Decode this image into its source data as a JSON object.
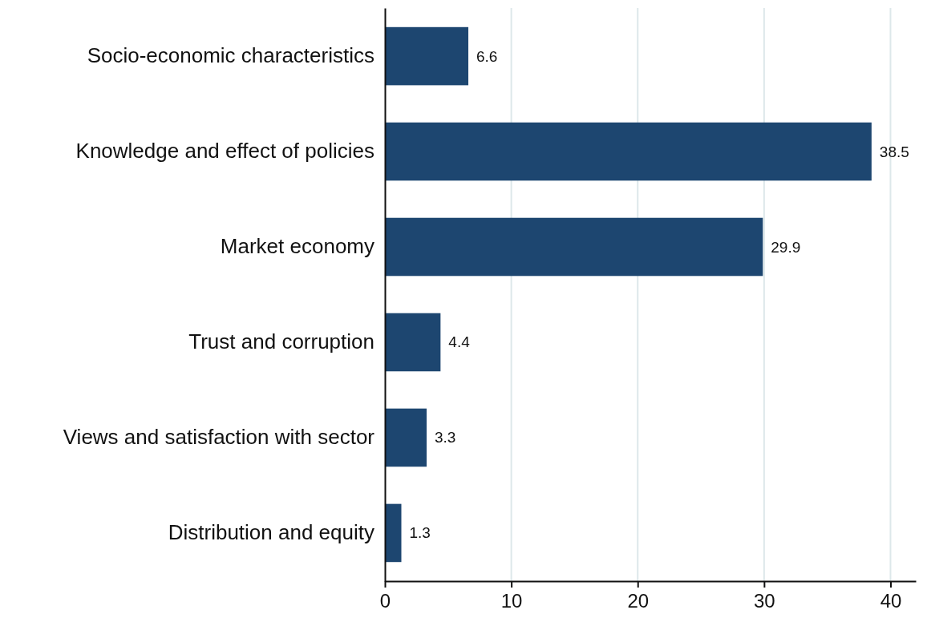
{
  "chart_data": {
    "type": "bar",
    "orientation": "horizontal",
    "categories": [
      "Socio-economic characteristics",
      "Knowledge and effect of policies",
      "Market economy",
      "Trust and corruption",
      "Views and satisfaction with sector",
      "Distribution and equity"
    ],
    "values": [
      6.6,
      38.5,
      29.9,
      4.4,
      3.3,
      1.3
    ],
    "color": "#1d4670",
    "xlim": [
      0,
      42
    ],
    "xticks": [
      0,
      10,
      20,
      30,
      40
    ],
    "grid": "x",
    "data_labels": true
  }
}
